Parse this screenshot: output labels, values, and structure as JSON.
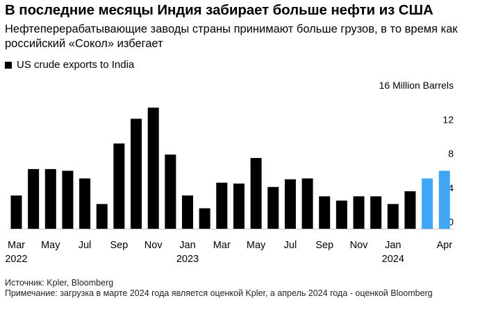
{
  "header": {
    "title": "В последние месяцы Индия забирает больше нефти из США",
    "subtitle": "Нефтеперерабатывающие заводы страны принимают больше грузов, в то время как российский «Сокол» избегает"
  },
  "legend": {
    "label": "US crude exports to India",
    "color": "#000000"
  },
  "chart_data": {
    "type": "bar",
    "title": "US crude exports to India",
    "ylabel": "16 Million Barrels",
    "unit": "Million Barrels",
    "ylim": [
      0,
      16
    ],
    "yticks": [
      0,
      4,
      8,
      12,
      16
    ],
    "ytick_labels": [
      "0",
      "4",
      "8",
      "12",
      "16 Million Barrels"
    ],
    "categories": [
      "Mar 2022",
      "Apr 2022",
      "May 2022",
      "Jun 2022",
      "Jul 2022",
      "Aug 2022",
      "Sep 2022",
      "Oct 2022",
      "Nov 2022",
      "Dec 2022",
      "Jan 2023",
      "Feb 2023",
      "Mar 2023",
      "Apr 2023",
      "May 2023",
      "Jun 2023",
      "Jul 2023",
      "Aug 2023",
      "Sep 2023",
      "Oct 2023",
      "Nov 2023",
      "Dec 2023",
      "Jan 2024",
      "Feb 2024",
      "Mar 2024",
      "Apr 2024"
    ],
    "values": [
      3.9,
      7.0,
      7.0,
      6.8,
      5.9,
      2.9,
      10.0,
      12.9,
      14.2,
      8.7,
      3.9,
      2.4,
      5.4,
      5.3,
      8.3,
      4.9,
      5.8,
      5.9,
      3.8,
      3.3,
      3.8,
      3.8,
      2.9,
      4.4,
      5.9,
      6.8
    ],
    "estimated": [
      false,
      false,
      false,
      false,
      false,
      false,
      false,
      false,
      false,
      false,
      false,
      false,
      false,
      false,
      false,
      false,
      false,
      false,
      false,
      false,
      false,
      false,
      false,
      false,
      true,
      true
    ],
    "colors": {
      "actual": "#000000",
      "estimate": "#3ea6f5"
    },
    "xtick_labels": [
      {
        "index": 0,
        "month": "Mar",
        "year": "2022"
      },
      {
        "index": 2,
        "month": "May",
        "year": ""
      },
      {
        "index": 4,
        "month": "Jul",
        "year": ""
      },
      {
        "index": 6,
        "month": "Sep",
        "year": ""
      },
      {
        "index": 8,
        "month": "Nov",
        "year": ""
      },
      {
        "index": 10,
        "month": "Jan",
        "year": "2023"
      },
      {
        "index": 12,
        "month": "Mar",
        "year": ""
      },
      {
        "index": 14,
        "month": "May",
        "year": ""
      },
      {
        "index": 16,
        "month": "Jul",
        "year": ""
      },
      {
        "index": 18,
        "month": "Sep",
        "year": ""
      },
      {
        "index": 20,
        "month": "Nov",
        "year": ""
      },
      {
        "index": 22,
        "month": "Jan",
        "year": "2024"
      },
      {
        "index": 25,
        "month": "Apr",
        "year": ""
      }
    ]
  },
  "footer": {
    "source": "Источник: Kpler, Bloomberg",
    "note": "Примечание: загрузка в марте 2024 года является оценкой Kpler, а апрель 2024 года - оценкой Bloomberg"
  }
}
